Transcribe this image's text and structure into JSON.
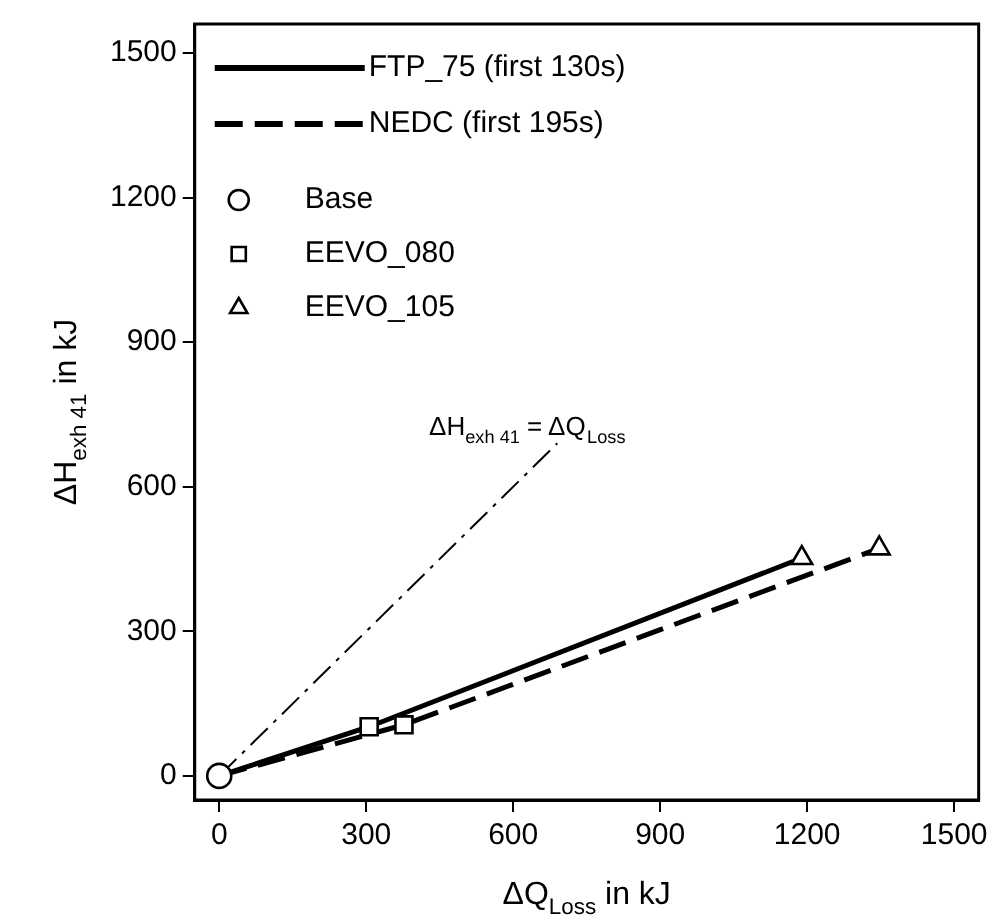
{
  "chart_data": {
    "type": "line",
    "xlabel": "ΔQ$_{Loss}$ in kJ",
    "ylabel": "ΔH$_{exh 41}$ in kJ",
    "xlim": [
      -50,
      1550
    ],
    "xticks": [
      0,
      300,
      600,
      900,
      1200,
      1500
    ],
    "ylim": [
      -50,
      1560
    ],
    "yticks": [
      0,
      300,
      600,
      900,
      1200,
      1500
    ],
    "grid": false,
    "legend": "top left",
    "series": [
      {
        "name": "FTP_75 (first 130s)",
        "type": "line",
        "color": "#000000",
        "line_style": "solid",
        "marker": "none",
        "x": [
          0,
          306,
          1189
        ],
        "values": [
          0,
          102,
          452
        ]
      },
      {
        "name": "NEDC (first 195s)",
        "type": "line",
        "color": "#000000",
        "line_style": "dashed",
        "marker": "none",
        "x": [
          0,
          377,
          1347
        ],
        "values": [
          0,
          106,
          472
        ]
      },
      {
        "name": "Base",
        "type": "scatter",
        "color": "#000000",
        "marker": "circle",
        "x": [
          0
        ],
        "values": [
          0
        ]
      },
      {
        "name": "EEVO_080",
        "type": "scatter",
        "color": "#000000",
        "marker": "square",
        "x": [
          306,
          377
        ],
        "values": [
          102,
          106
        ]
      },
      {
        "name": "EEVO_105",
        "type": "scatter",
        "color": "#000000",
        "marker": "triangle",
        "x": [
          1189,
          1347
        ],
        "values": [
          452,
          472
        ]
      },
      {
        "type": "line",
        "color": "#000000",
        "line_style": "dashdot",
        "marker": "none",
        "x": [
          0,
          690
        ],
        "values": [
          0,
          690
        ]
      }
    ],
    "annotations": [
      {
        "text": "ΔH$_{exh 41}$ = ΔQ$_{Loss}$",
        "x": 690,
        "y": 690
      }
    ]
  }
}
